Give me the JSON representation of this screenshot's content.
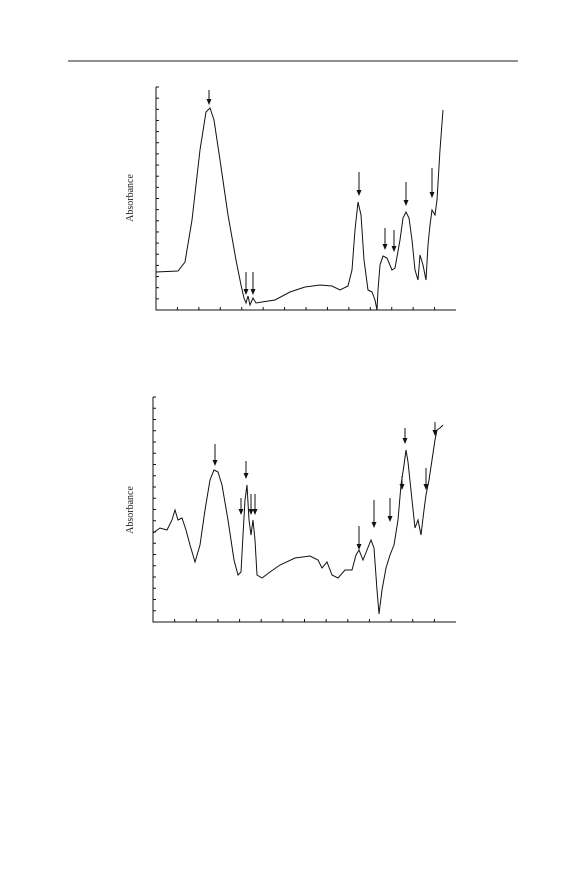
{
  "figures": [
    {
      "y_label": "Absorbance"
    },
    {
      "y_label": "Absorbance"
    }
  ]
}
